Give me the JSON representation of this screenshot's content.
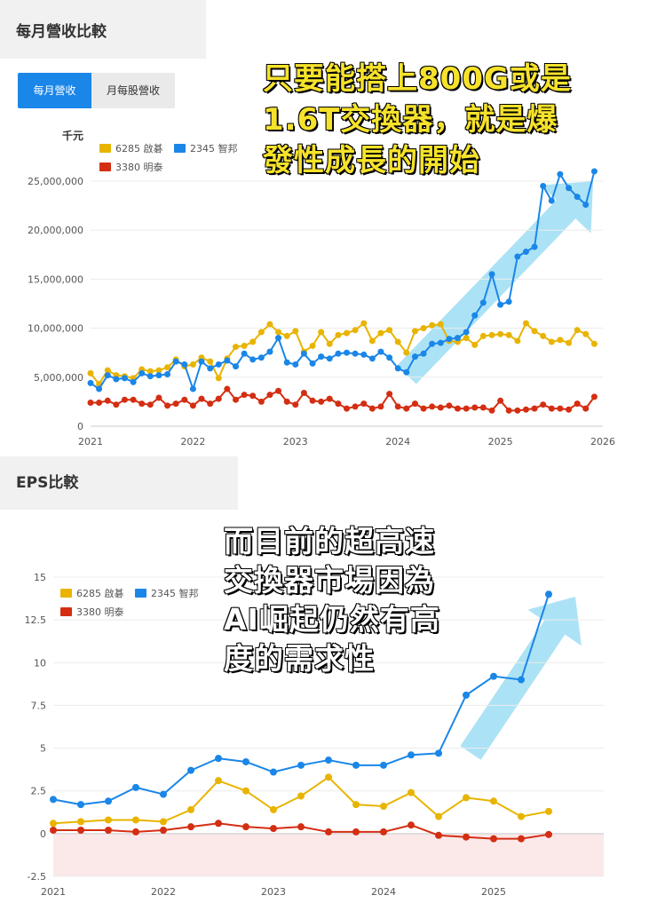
{
  "sections": {
    "revenue_title": "每月營收比較",
    "eps_title": "EPS比較"
  },
  "tabs": [
    {
      "label": "每月營收",
      "active": true
    },
    {
      "label": "月每股營收",
      "active": false
    }
  ],
  "overlays": {
    "top": [
      "只要能搭上800G或是",
      "1.6T交換器，就是爆",
      "發性成長的開始"
    ],
    "bottom": [
      "而目前的超高速",
      "交換器市場因為",
      "AI崛起仍然有高",
      "度的需求性"
    ]
  },
  "colors": {
    "s6285": "#e8b400",
    "s2345": "#1a86e8",
    "s3380": "#d42e12",
    "arrow": "#7fd3f0",
    "negative_zone": "#fbe9ea"
  },
  "chart_data": [
    {
      "type": "line",
      "unit": "千元",
      "x_range": [
        2021,
        2026
      ],
      "x_ticks": [
        "2021",
        "2022",
        "2023",
        "2024",
        "2025",
        "2026"
      ],
      "ylim": [
        0,
        25000000
      ],
      "y_ticks": [
        "0",
        "5,000,000",
        "10,000,000",
        "15,000,000",
        "20,000,000",
        "25,000,000"
      ],
      "legend": "top-left",
      "series": [
        {
          "name": "6285 啟碁",
          "color": "#e8b400",
          "x": [
            2021.0,
            2021.083,
            2021.167,
            2021.25,
            2021.333,
            2021.417,
            2021.5,
            2021.583,
            2021.667,
            2021.75,
            2021.833,
            2021.917,
            2022.0,
            2022.083,
            2022.167,
            2022.25,
            2022.333,
            2022.417,
            2022.5,
            2022.583,
            2022.667,
            2022.75,
            2022.833,
            2022.917,
            2023.0,
            2023.083,
            2023.167,
            2023.25,
            2023.333,
            2023.417,
            2023.5,
            2023.583,
            2023.667,
            2023.75,
            2023.833,
            2023.917,
            2024.0,
            2024.083,
            2024.167,
            2024.25,
            2024.333,
            2024.417,
            2024.5,
            2024.583,
            2024.667,
            2024.75,
            2024.833,
            2024.917,
            2025.0,
            2025.083,
            2025.167,
            2025.25,
            2025.333,
            2025.417,
            2025.5,
            2025.583,
            2025.667,
            2025.75,
            2025.833,
            2025.917
          ],
          "values": [
            5400000,
            4300000,
            5700000,
            5200000,
            5100000,
            4900000,
            5800000,
            5600000,
            5700000,
            6000000,
            6800000,
            6100000,
            6300000,
            7000000,
            6600000,
            4900000,
            6900000,
            8100000,
            8200000,
            8600000,
            9600000,
            10400000,
            9600000,
            9200000,
            9700000,
            7600000,
            8200000,
            9600000,
            8400000,
            9300000,
            9500000,
            9800000,
            10500000,
            8700000,
            9500000,
            9800000,
            8600000,
            7500000,
            9700000,
            10000000,
            10300000,
            10400000,
            8700000,
            8600000,
            9000000,
            8300000,
            9200000,
            9300000,
            9400000,
            9300000,
            8700000,
            10500000,
            9700000,
            9200000,
            8600000,
            8800000,
            8500000,
            9800000,
            9400000,
            8400000
          ],
          "extra": [
            [
              2025.92,
              9200000
            ]
          ]
        },
        {
          "name": "2345 智邦",
          "color": "#1a86e8",
          "x": [
            2021.0,
            2021.083,
            2021.167,
            2021.25,
            2021.333,
            2021.417,
            2021.5,
            2021.583,
            2021.667,
            2021.75,
            2021.833,
            2021.917,
            2022.0,
            2022.083,
            2022.167,
            2022.25,
            2022.333,
            2022.417,
            2022.5,
            2022.583,
            2022.667,
            2022.75,
            2022.833,
            2022.917,
            2023.0,
            2023.083,
            2023.167,
            2023.25,
            2023.333,
            2023.417,
            2023.5,
            2023.583,
            2023.667,
            2023.75,
            2023.833,
            2023.917,
            2024.0,
            2024.083,
            2024.167,
            2024.25,
            2024.333,
            2024.417,
            2024.5,
            2024.583,
            2024.667,
            2024.75,
            2024.833,
            2024.917,
            2025.0,
            2025.083,
            2025.167,
            2025.25,
            2025.333,
            2025.417,
            2025.5,
            2025.583,
            2025.667,
            2025.75,
            2025.833,
            2025.917
          ],
          "values": [
            4400000,
            3800000,
            5200000,
            4800000,
            4900000,
            4500000,
            5400000,
            5100000,
            5200000,
            5300000,
            6600000,
            6300000,
            3800000,
            6600000,
            5900000,
            6300000,
            6700000,
            6100000,
            7400000,
            6800000,
            7000000,
            7600000,
            9000000,
            6500000,
            6300000,
            7400000,
            6400000,
            7100000,
            6900000,
            7400000,
            7500000,
            7400000,
            7300000,
            6900000,
            7600000,
            7000000,
            5900000,
            5500000,
            7100000,
            7400000,
            8400000,
            8500000,
            8900000,
            9000000,
            9600000,
            11300000,
            12600000,
            15500000,
            12400000,
            12700000,
            17300000,
            17800000,
            18300000,
            24500000,
            23000000,
            25700000,
            24300000,
            23400000,
            22600000,
            26000000
          ]
        },
        {
          "name": "3380 明泰",
          "color": "#d42e12",
          "x": [
            2021.0,
            2021.083,
            2021.167,
            2021.25,
            2021.333,
            2021.417,
            2021.5,
            2021.583,
            2021.667,
            2021.75,
            2021.833,
            2021.917,
            2022.0,
            2022.083,
            2022.167,
            2022.25,
            2022.333,
            2022.417,
            2022.5,
            2022.583,
            2022.667,
            2022.75,
            2022.833,
            2022.917,
            2023.0,
            2023.083,
            2023.167,
            2023.25,
            2023.333,
            2023.417,
            2023.5,
            2023.583,
            2023.667,
            2023.75,
            2023.833,
            2023.917,
            2024.0,
            2024.083,
            2024.167,
            2024.25,
            2024.333,
            2024.417,
            2024.5,
            2024.583,
            2024.667,
            2024.75,
            2024.833,
            2024.917,
            2025.0,
            2025.083,
            2025.167,
            2025.25,
            2025.333,
            2025.417,
            2025.5,
            2025.583,
            2025.667,
            2025.75,
            2025.833,
            2025.917
          ],
          "values": [
            2400000,
            2400000,
            2600000,
            2200000,
            2700000,
            2700000,
            2300000,
            2200000,
            2900000,
            2100000,
            2300000,
            2700000,
            2100000,
            2800000,
            2300000,
            2800000,
            3800000,
            2700000,
            3200000,
            3100000,
            2500000,
            3200000,
            3600000,
            2500000,
            2200000,
            3400000,
            2600000,
            2500000,
            2800000,
            2300000,
            1800000,
            2000000,
            2300000,
            1800000,
            2000000,
            3300000,
            2000000,
            1800000,
            2300000,
            1800000,
            2000000,
            1900000,
            2100000,
            1800000,
            1800000,
            1900000,
            1900000,
            1600000,
            2600000,
            1600000,
            1600000,
            1700000,
            1800000,
            2200000,
            1800000,
            1800000,
            1700000,
            2300000,
            1800000,
            3000000
          ]
        }
      ]
    },
    {
      "type": "line",
      "x_range": [
        2021,
        2026
      ],
      "x_ticks": [
        "2021",
        "2022",
        "2023",
        "2024",
        "2025"
      ],
      "ylim": [
        -2.5,
        15
      ],
      "y_ticks": [
        "-2.5",
        "0",
        "2.5",
        "5",
        "7.5",
        "10",
        "12.5",
        "15"
      ],
      "legend": "top-left",
      "series": [
        {
          "name": "6285 啟碁",
          "color": "#e8b400",
          "x": [
            2021.0,
            2021.25,
            2021.5,
            2021.75,
            2022.0,
            2022.25,
            2022.5,
            2022.75,
            2023.0,
            2023.25,
            2023.5,
            2023.75,
            2024.0,
            2024.25,
            2024.5,
            2024.75,
            2025.0,
            2025.25,
            2025.5
          ],
          "values": [
            0.6,
            0.7,
            0.8,
            0.8,
            0.7,
            1.4,
            3.1,
            2.5,
            1.4,
            2.2,
            3.3,
            1.7,
            1.6,
            2.4,
            1.0,
            2.1,
            1.9,
            1.0,
            1.3
          ]
        },
        {
          "name": "2345 智邦",
          "color": "#1a86e8",
          "x": [
            2021.0,
            2021.25,
            2021.5,
            2021.75,
            2022.0,
            2022.25,
            2022.5,
            2022.75,
            2023.0,
            2023.25,
            2023.5,
            2023.75,
            2024.0,
            2024.25,
            2024.5,
            2024.75,
            2025.0,
            2025.25,
            2025.5
          ],
          "values": [
            2.0,
            1.7,
            1.9,
            2.7,
            2.3,
            3.7,
            4.4,
            4.2,
            3.6,
            4.0,
            4.3,
            4.0,
            4.0,
            4.6,
            4.7,
            8.1,
            9.2,
            9.0,
            14.0
          ]
        },
        {
          "name": "3380 明泰",
          "color": "#d42e12",
          "x": [
            2021.0,
            2021.25,
            2021.5,
            2021.75,
            2022.0,
            2022.25,
            2022.5,
            2022.75,
            2023.0,
            2023.25,
            2023.5,
            2023.75,
            2024.0,
            2024.25,
            2024.5,
            2024.75,
            2025.0,
            2025.25,
            2025.5
          ],
          "values": [
            0.2,
            0.2,
            0.2,
            0.1,
            0.2,
            0.4,
            0.6,
            0.4,
            0.3,
            0.4,
            0.1,
            0.1,
            0.1,
            0.5,
            -0.1,
            -0.2,
            -0.3,
            -0.3,
            -0.05
          ]
        }
      ]
    }
  ]
}
